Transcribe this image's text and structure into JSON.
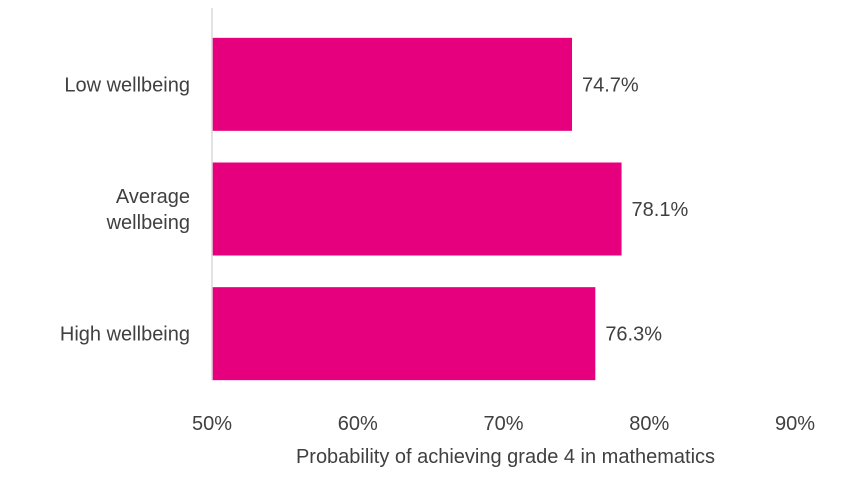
{
  "chart_data": {
    "type": "bar",
    "orientation": "horizontal",
    "categories": [
      [
        "Low wellbeing"
      ],
      [
        "Average",
        "wellbeing"
      ],
      [
        "High wellbeing"
      ]
    ],
    "values": [
      74.7,
      78.1,
      76.3
    ],
    "value_labels": [
      "74.7%",
      "78.1%",
      "76.3%"
    ],
    "xlabel": "Probability of achieving grade 4 in mathematics",
    "ylabel": "",
    "xlim": [
      50,
      90
    ],
    "x_ticks": [
      50,
      60,
      70,
      80,
      90
    ],
    "x_tick_labels": [
      "50%",
      "60%",
      "70%",
      "80%",
      "90%"
    ],
    "grid": false,
    "legend": "none",
    "bar_color": "#E6007E",
    "axis_color": "#D9D9D9",
    "text_color": "#404040"
  }
}
